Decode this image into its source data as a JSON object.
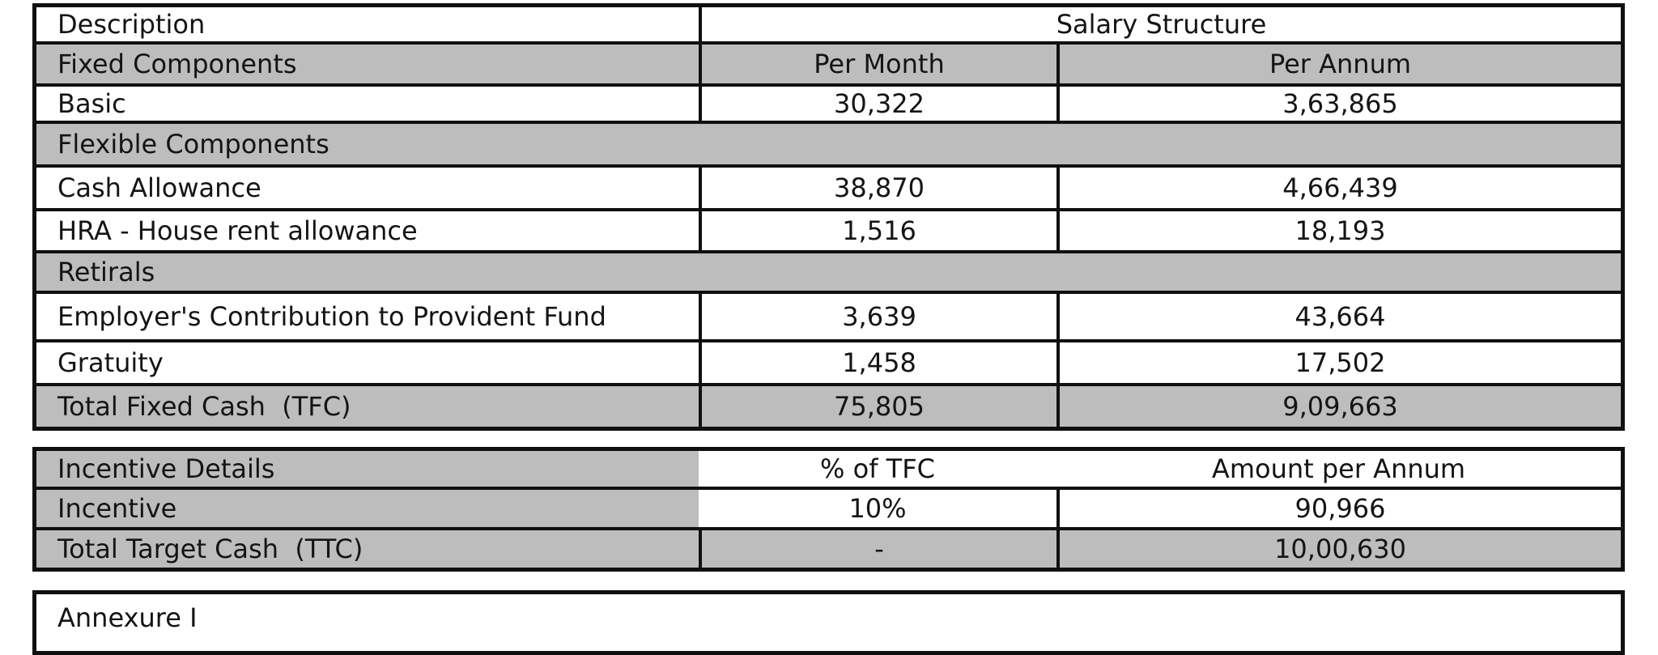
{
  "colors": {
    "section_gray": "#bdbdbd",
    "border_black": "#101010",
    "text": "#141414",
    "background": "#ffffff"
  },
  "salary_table": {
    "rows": [
      {
        "label": "Description",
        "merged": "Salary Structure"
      },
      {
        "label": "Fixed Components",
        "col2": "Per Month",
        "col3": "Per Annum"
      },
      {
        "label": "Basic",
        "col2": "30,322",
        "col3": "3,63,865"
      },
      {
        "label": "Flexible Components"
      },
      {
        "label": "Cash Allowance",
        "col2": "38,870",
        "col3": "4,66,439"
      },
      {
        "label": "HRA - House rent allowance",
        "col2": "1,516",
        "col3": "18,193"
      },
      {
        "label": "Retirals"
      },
      {
        "label": "Employer's Contribution to Provident Fund",
        "col2": "3,639",
        "col3": "43,664"
      },
      {
        "label": "Gratuity",
        "col2": "1,458",
        "col3": "17,502"
      },
      {
        "label": "Total Fixed Cash  (TFC)",
        "col2": "75,805",
        "col3": "9,09,663"
      }
    ]
  },
  "incentive_table": {
    "rows": [
      {
        "label": "Incentive Details",
        "col2": "% of TFC",
        "col3": "Amount per Annum"
      },
      {
        "label": "Incentive",
        "col2": "10%",
        "col3": "90,966"
      },
      {
        "label": "Total Target Cash  (TTC)",
        "col2": "-",
        "col3": "10,00,630"
      }
    ]
  },
  "annexure": {
    "title": "Annexure I"
  }
}
